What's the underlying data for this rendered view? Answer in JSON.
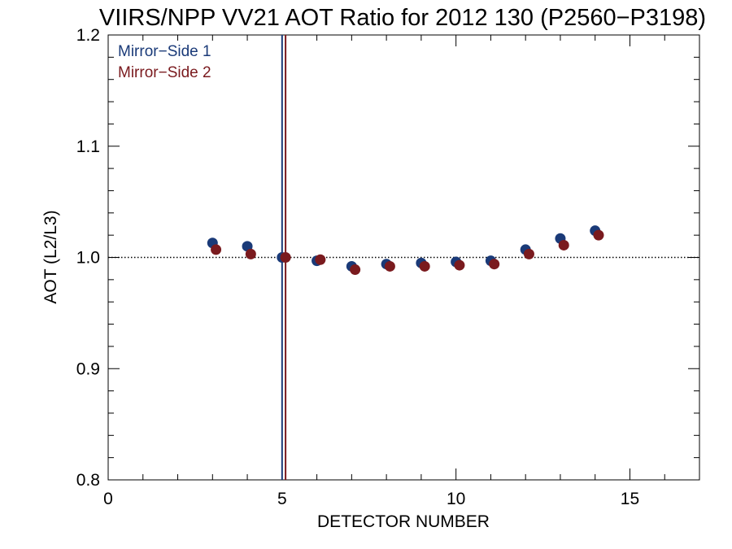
{
  "chart_data": {
    "type": "scatter",
    "title": "VIIRS/NPP VV21 AOT Ratio for 2012 130 (P2560−P3198)",
    "xlabel": "DETECTOR NUMBER",
    "ylabel": "AOT (L2/L3)",
    "xlim": [
      0,
      17
    ],
    "ylim": [
      0.8,
      1.2
    ],
    "x_ticks": [
      0,
      5,
      10,
      15
    ],
    "x_tick_labels": [
      "0",
      "5",
      "10",
      "15"
    ],
    "y_ticks": [
      0.8,
      0.9,
      1.0,
      1.1,
      1.2
    ],
    "y_tick_labels": [
      "0.8",
      "0.9",
      "1.0",
      "1.1",
      "1.2"
    ],
    "reference_line": {
      "y": 1.0,
      "style": "dotted"
    },
    "vertical_lines": [
      {
        "x": 5.0,
        "series": "Mirror−Side 1"
      },
      {
        "x": 5.1,
        "series": "Mirror−Side 2"
      }
    ],
    "legend_position": "top-left",
    "grid": false,
    "series": [
      {
        "name": "Mirror−Side 1",
        "color": "#1a3a78",
        "x": [
          3,
          4,
          5,
          6,
          7,
          8,
          9,
          10,
          11,
          12,
          13,
          14
        ],
        "y": [
          1.013,
          1.01,
          1.0,
          0.997,
          0.992,
          0.994,
          0.995,
          0.996,
          0.997,
          1.007,
          1.017,
          1.024
        ]
      },
      {
        "name": "Mirror−Side 2",
        "color": "#7a1a1e",
        "x": [
          3.1,
          4.1,
          5.1,
          6.1,
          7.1,
          8.1,
          9.1,
          10.1,
          11.1,
          12.1,
          13.1,
          14.1
        ],
        "y": [
          1.007,
          1.003,
          1.0,
          0.998,
          0.989,
          0.992,
          0.992,
          0.993,
          0.994,
          1.003,
          1.011,
          1.02
        ]
      }
    ]
  }
}
